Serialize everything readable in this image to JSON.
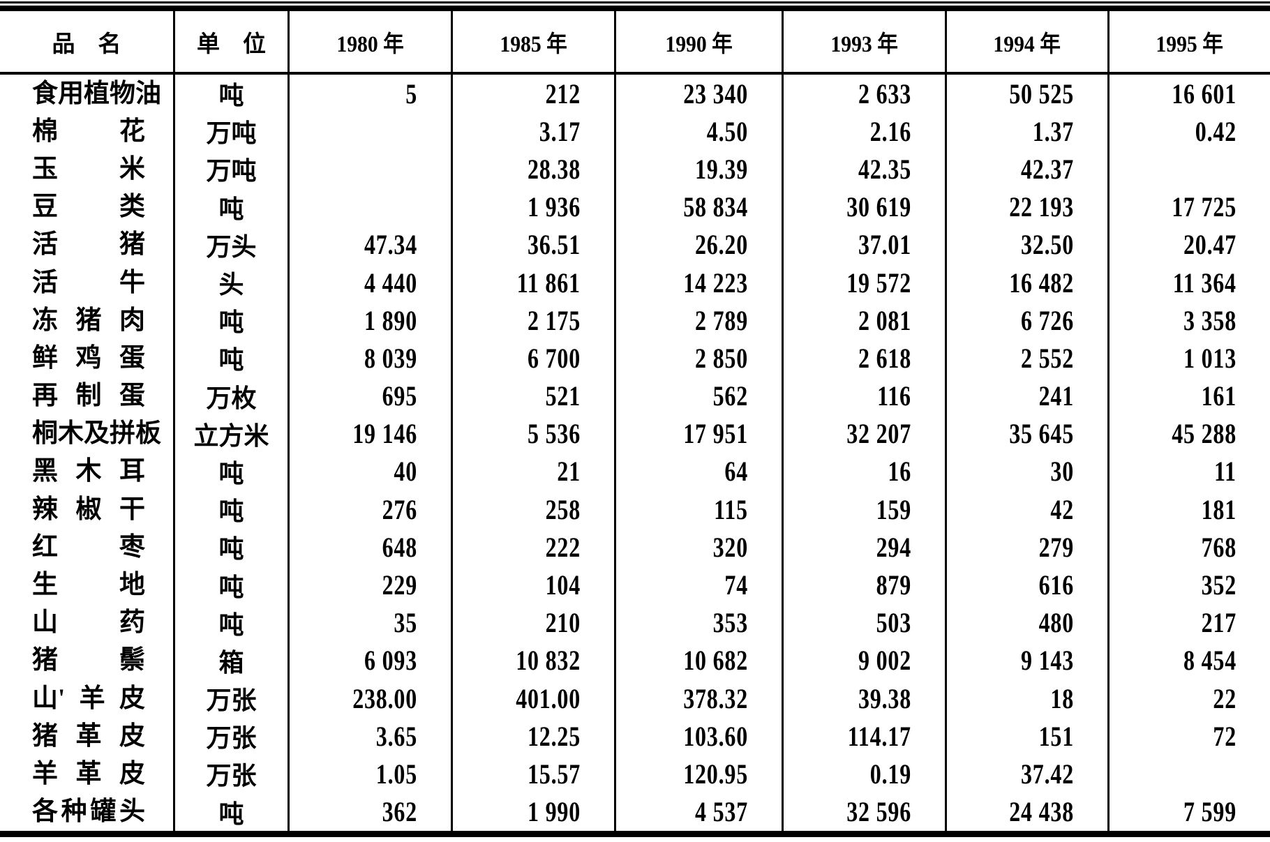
{
  "document": {
    "type": "scanned-statistical-table",
    "language": "zh-CN"
  },
  "colors": {
    "ink": "#000000",
    "paper": "#ffffff"
  },
  "table": {
    "headers": {
      "name": "品    名",
      "unit": "单    位",
      "years": [
        "1980 年",
        "1985 年",
        "1990 年",
        "1993 年",
        "1994 年",
        "1995 年"
      ]
    },
    "rows": [
      {
        "name": [
          "食",
          "用",
          "植",
          "物",
          "油"
        ],
        "unit": "吨",
        "values": [
          "5",
          "212",
          "23 340",
          "2 633",
          "50 525",
          "16 601"
        ]
      },
      {
        "name": [
          "棉",
          "花"
        ],
        "unit": "万吨",
        "values": [
          "",
          "3.17",
          "4.50",
          "2.16",
          "1.37",
          "0.42"
        ]
      },
      {
        "name": [
          "玉",
          "米"
        ],
        "unit": "万吨",
        "values": [
          "",
          "28.38",
          "19.39",
          "42.35",
          "42.37",
          ""
        ]
      },
      {
        "name": [
          "豆",
          "类"
        ],
        "unit": "吨",
        "values": [
          "",
          "1 936",
          "58 834",
          "30 619",
          "22 193",
          "17 725"
        ]
      },
      {
        "name": [
          "活",
          "猪"
        ],
        "unit": "万头",
        "values": [
          "47.34",
          "36.51",
          "26.20",
          "37.01",
          "32.50",
          "20.47"
        ]
      },
      {
        "name": [
          "活",
          "牛"
        ],
        "unit": "头",
        "values": [
          "4 440",
          "11 861",
          "14 223",
          "19 572",
          "16 482",
          "11 364"
        ]
      },
      {
        "name": [
          "冻",
          "猪",
          "肉"
        ],
        "unit": "吨",
        "values": [
          "1 890",
          "2 175",
          "2 789",
          "2 081",
          "6 726",
          "3 358"
        ]
      },
      {
        "name": [
          "鲜",
          "鸡",
          "蛋"
        ],
        "unit": "吨",
        "values": [
          "8 039",
          "6 700",
          "2 850",
          "2 618",
          "2 552",
          "1 013"
        ]
      },
      {
        "name": [
          "再",
          "制",
          "蛋"
        ],
        "unit": "万枚",
        "values": [
          "695",
          "521",
          "562",
          "116",
          "241",
          "161"
        ]
      },
      {
        "name": [
          "桐",
          "木",
          "及",
          "拼",
          "板"
        ],
        "unit": "立方米",
        "values": [
          "19 146",
          "5 536",
          "17 951",
          "32 207",
          "35 645",
          "45 288"
        ]
      },
      {
        "name": [
          "黑",
          "木",
          "耳"
        ],
        "unit": "吨",
        "values": [
          "40",
          "21",
          "64",
          "16",
          "30",
          "11"
        ]
      },
      {
        "name": [
          "辣",
          "椒",
          "干"
        ],
        "unit": "吨",
        "values": [
          "276",
          "258",
          "115",
          "159",
          "42",
          "181"
        ]
      },
      {
        "name": [
          "红",
          "枣"
        ],
        "unit": "吨",
        "values": [
          "648",
          "222",
          "320",
          "294",
          "279",
          "768"
        ]
      },
      {
        "name": [
          "生",
          "地"
        ],
        "unit": "吨",
        "values": [
          "229",
          "104",
          "74",
          "879",
          "616",
          "352"
        ]
      },
      {
        "name": [
          "山",
          "药"
        ],
        "unit": "吨",
        "values": [
          "35",
          "210",
          "353",
          "503",
          "480",
          "217"
        ]
      },
      {
        "name": [
          "猪",
          "鬃"
        ],
        "unit": "箱",
        "values": [
          "6 093",
          "10 832",
          "10 682",
          "9 002",
          "9 143",
          "8 454"
        ]
      },
      {
        "name": [
          "山'",
          "羊",
          "皮"
        ],
        "unit": "万张",
        "values": [
          "238.00",
          "401.00",
          "378.32",
          "39.38",
          "18",
          "22"
        ]
      },
      {
        "name": [
          "猪",
          "革",
          "皮"
        ],
        "unit": "万张",
        "values": [
          "3.65",
          "12.25",
          "103.60",
          "114.17",
          "151",
          "72"
        ]
      },
      {
        "name": [
          "羊",
          "革",
          "皮"
        ],
        "unit": "万张",
        "values": [
          "1.05",
          "15.57",
          "120.95",
          "0.19",
          "37.42",
          ""
        ]
      },
      {
        "name": [
          "各",
          "种",
          "罐",
          "头"
        ],
        "unit": "吨",
        "values": [
          "362",
          "1 990",
          "4 537",
          "32 596",
          "24 438",
          "7 599"
        ]
      }
    ]
  }
}
